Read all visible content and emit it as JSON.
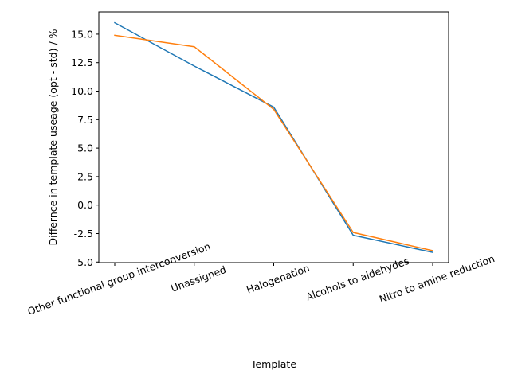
{
  "chart_data": {
    "type": "line",
    "title": "",
    "xlabel": "Template",
    "ylabel": "Differnce in template useage (opt - std) / %",
    "categories": [
      "Other functional group interconversion",
      "Unassigned",
      "Halogenation",
      "Alcohols to aldehydes",
      "Nitro to amine reduction"
    ],
    "series": [
      {
        "color": "#1f77b4",
        "values": [
          16.0,
          12.2,
          8.6,
          -2.65,
          -4.15
        ]
      },
      {
        "color": "#ff7f0e",
        "values": [
          14.9,
          13.9,
          8.4,
          -2.4,
          -4.0
        ]
      }
    ],
    "ylim": [
      -5.05,
      16.95
    ],
    "yticks": [
      "-5.0",
      "-2.5",
      "0.0",
      "2.5",
      "5.0",
      "7.5",
      "10.0",
      "12.5",
      "15.0"
    ],
    "xtick_rotation": 20,
    "grid": false,
    "legend": "none"
  }
}
